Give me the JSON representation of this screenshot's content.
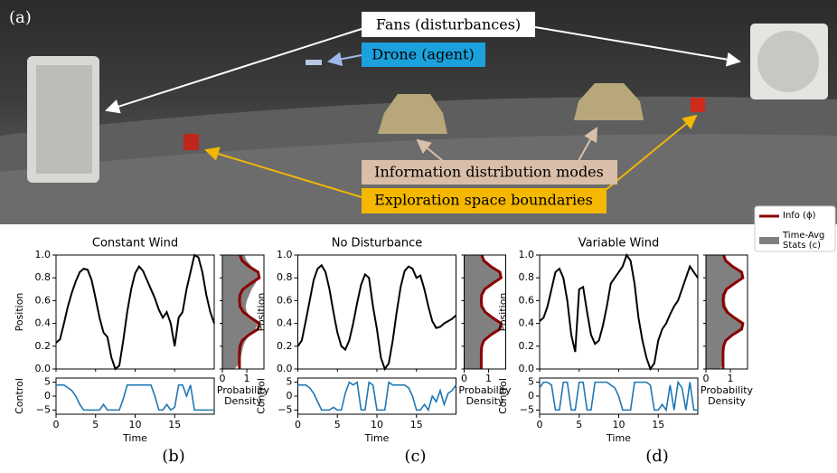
{
  "photo": {
    "panel_label": "(a)",
    "labels": [
      "Fans (disturbances)",
      "Drone (agent)",
      "Information distribution modes",
      "Exploration space boundaries"
    ]
  },
  "chart_data": [
    {
      "type": "line",
      "title": "Constant Wind",
      "caption": "(b)",
      "x": [
        0,
        0.5,
        1,
        1.5,
        2,
        2.5,
        3,
        3.5,
        4,
        4.5,
        5,
        5.5,
        6,
        6.5,
        7,
        7.5,
        8,
        8.5,
        9,
        9.5,
        10,
        10.5,
        11,
        11.5,
        12,
        12.5,
        13,
        13.5,
        14,
        14.5,
        15,
        15.5,
        16,
        16.5,
        17,
        17.5,
        18,
        18.5,
        19,
        19.5,
        20
      ],
      "xlim": [
        0,
        20
      ],
      "xticks": [
        0,
        5,
        10,
        15
      ],
      "xlabel": "Time",
      "ylabel": "Position",
      "ylim": [
        0,
        1
      ],
      "yticks": [
        {
          "value": 0,
          "label": "0.0"
        },
        0.2,
        0.4,
        0.6,
        0.8,
        {
          "value": 1,
          "label": "1.0"
        }
      ],
      "series": [
        {
          "color": "#000000",
          "values": [
            0.23,
            0.26,
            0.4,
            0.55,
            0.67,
            0.77,
            0.85,
            0.88,
            0.87,
            0.78,
            0.62,
            0.45,
            0.32,
            0.28,
            0.1,
            0.0,
            0.03,
            0.25,
            0.5,
            0.7,
            0.84,
            0.9,
            0.86,
            0.78,
            0.7,
            0.62,
            0.52,
            0.45,
            0.5,
            0.4,
            0.2,
            0.45,
            0.5,
            0.7,
            0.85,
            1.0,
            0.98,
            0.85,
            0.65,
            0.5,
            0.4
          ]
        }
      ],
      "control": {
        "ylabel": "Control",
        "ylim": [
          -6.5,
          6.5
        ],
        "yticks": [
          {
            "value": -5,
            "label": "−5"
          },
          0,
          5
        ],
        "color": "#1f77b4",
        "values": [
          4,
          4,
          4,
          3,
          2,
          0,
          -3,
          -5,
          -5,
          -5,
          -5,
          -5,
          -3,
          -5,
          -5,
          -5,
          -5,
          -1,
          4,
          4,
          4,
          4,
          4,
          4,
          4,
          0,
          -5,
          -5,
          -3,
          -5,
          -4,
          4,
          4,
          0,
          4,
          -5,
          -5,
          -5,
          -5,
          -5,
          -5
        ]
      },
      "density": {
        "xlabel": "Probability Density",
        "xlim": [
          0,
          1.7
        ],
        "xticks": [
          0,
          1
        ],
        "info_color": "#8b0000",
        "stats_color": "#808080",
        "y": [
          0,
          0.05,
          0.1,
          0.15,
          0.2,
          0.25,
          0.3,
          0.35,
          0.4,
          0.45,
          0.5,
          0.55,
          0.6,
          0.65,
          0.7,
          0.75,
          0.8,
          0.85,
          0.9,
          0.95,
          1
        ],
        "info": [
          0.7,
          0.7,
          0.7,
          0.7,
          0.72,
          0.81,
          1.09,
          1.46,
          1.51,
          1.16,
          0.86,
          0.72,
          0.7,
          0.72,
          0.84,
          1.16,
          1.51,
          1.46,
          1.09,
          0.81,
          0.72
        ],
        "stats": [
          0.5,
          0.7,
          0.75,
          0.8,
          0.85,
          0.95,
          1.1,
          1.35,
          1.45,
          1.2,
          1.0,
          0.95,
          1.0,
          1.1,
          1.2,
          1.35,
          1.45,
          1.4,
          1.2,
          1.0,
          0.9
        ]
      }
    },
    {
      "type": "line",
      "title": "No Disturbance",
      "caption": "(c)",
      "x": [
        0,
        0.5,
        1,
        1.5,
        2,
        2.5,
        3,
        3.5,
        4,
        4.5,
        5,
        5.5,
        6,
        6.5,
        7,
        7.5,
        8,
        8.5,
        9,
        9.5,
        10,
        10.5,
        11,
        11.5,
        12,
        12.5,
        13,
        13.5,
        14,
        14.5,
        15,
        15.5,
        16,
        16.5,
        17,
        17.5,
        18,
        18.5,
        19,
        19.5,
        20
      ],
      "xlim": [
        0,
        20
      ],
      "xticks": [
        0,
        5,
        10,
        15
      ],
      "xlabel": "Time",
      "ylabel": "Position",
      "ylim": [
        0,
        1
      ],
      "yticks": [
        {
          "value": 0,
          "label": "0.0"
        },
        0.2,
        0.4,
        0.6,
        0.8,
        {
          "value": 1,
          "label": "1.0"
        }
      ],
      "series": [
        {
          "color": "#000000",
          "values": [
            0.2,
            0.25,
            0.42,
            0.6,
            0.78,
            0.88,
            0.91,
            0.85,
            0.7,
            0.5,
            0.32,
            0.2,
            0.17,
            0.25,
            0.4,
            0.58,
            0.74,
            0.83,
            0.8,
            0.55,
            0.35,
            0.1,
            0.0,
            0.05,
            0.25,
            0.5,
            0.72,
            0.86,
            0.9,
            0.88,
            0.8,
            0.82,
            0.7,
            0.55,
            0.42,
            0.36,
            0.37,
            0.4,
            0.42,
            0.44,
            0.47
          ]
        }
      ],
      "control": {
        "ylabel": "Control",
        "ylim": [
          -6.5,
          6.5
        ],
        "yticks": [
          {
            "value": -5,
            "label": "−5"
          },
          0,
          5
        ],
        "color": "#1f77b4",
        "values": [
          4,
          4,
          4,
          3,
          1,
          -2,
          -5,
          -5,
          -5,
          -4,
          -5,
          -5,
          1,
          5,
          4,
          5,
          -5,
          -5,
          5,
          4,
          -5,
          -5,
          -5,
          5,
          4,
          4,
          4,
          4,
          3,
          0,
          -5,
          -5,
          -3,
          -5,
          0,
          -2,
          2,
          -3,
          1,
          2,
          4
        ]
      },
      "density": {
        "xlabel": "Probability Density",
        "xlim": [
          0,
          1.7
        ],
        "xticks": [
          0,
          1
        ],
        "info_color": "#8b0000",
        "stats_color": "#808080",
        "y": [
          0,
          0.05,
          0.1,
          0.15,
          0.2,
          0.25,
          0.3,
          0.35,
          0.4,
          0.45,
          0.5,
          0.55,
          0.6,
          0.65,
          0.7,
          0.75,
          0.8,
          0.85,
          0.9,
          0.95,
          1
        ],
        "info": [
          0.7,
          0.7,
          0.7,
          0.7,
          0.72,
          0.81,
          1.09,
          1.46,
          1.51,
          1.16,
          0.86,
          0.72,
          0.7,
          0.72,
          0.84,
          1.16,
          1.51,
          1.46,
          1.09,
          0.81,
          0.72
        ],
        "stats": [
          0.65,
          0.7,
          0.72,
          0.72,
          0.74,
          0.82,
          1.08,
          1.44,
          1.49,
          1.16,
          0.87,
          0.74,
          0.72,
          0.74,
          0.85,
          1.15,
          1.48,
          1.45,
          1.1,
          0.83,
          0.74
        ]
      }
    },
    {
      "type": "line",
      "title": "Variable Wind",
      "caption": "(d)",
      "x": [
        0,
        0.5,
        1,
        1.5,
        2,
        2.5,
        3,
        3.5,
        4,
        4.5,
        5,
        5.5,
        6,
        6.5,
        7,
        7.5,
        8,
        8.5,
        9,
        9.5,
        10,
        10.5,
        11,
        11.5,
        12,
        12.5,
        13,
        13.5,
        14,
        14.5,
        15,
        15.5,
        16,
        16.5,
        17,
        17.5,
        18,
        18.5,
        19,
        19.5,
        20
      ],
      "xlim": [
        0,
        20
      ],
      "xticks": [
        0,
        5,
        10,
        15
      ],
      "xlabel": "Time",
      "ylabel": "Position",
      "ylim": [
        0,
        1
      ],
      "yticks": [
        {
          "value": 0,
          "label": "0.0"
        },
        0.2,
        0.4,
        0.6,
        0.8,
        {
          "value": 1,
          "label": "1.0"
        }
      ],
      "series": [
        {
          "color": "#000000",
          "values": [
            0.42,
            0.45,
            0.55,
            0.7,
            0.85,
            0.88,
            0.8,
            0.6,
            0.3,
            0.15,
            0.7,
            0.72,
            0.5,
            0.3,
            0.22,
            0.25,
            0.38,
            0.55,
            0.75,
            0.8,
            0.85,
            0.9,
            1.0,
            0.95,
            0.75,
            0.45,
            0.25,
            0.1,
            0.0,
            0.05,
            0.25,
            0.35,
            0.4,
            0.48,
            0.55,
            0.6,
            0.7,
            0.8,
            0.9,
            0.85,
            0.8
          ]
        }
      ],
      "control": {
        "ylabel": "Control",
        "ylim": [
          -6.5,
          6.5
        ],
        "yticks": [
          {
            "value": -5,
            "label": "−5"
          },
          0,
          5
        ],
        "color": "#1f77b4",
        "values": [
          3,
          5,
          5,
          4,
          -5,
          -5,
          5,
          5,
          -5,
          -5,
          5,
          5,
          -5,
          -5,
          5,
          5,
          5,
          5,
          4,
          3,
          0,
          -5,
          -5,
          -5,
          5,
          5,
          5,
          5,
          4,
          -5,
          -5,
          -3,
          -5,
          4,
          -5,
          5,
          3,
          -5,
          5,
          -5,
          -5
        ]
      },
      "density": {
        "xlabel": "Probability Density",
        "xlim": [
          0,
          1.7
        ],
        "xticks": [
          0,
          1
        ],
        "info_color": "#8b0000",
        "stats_color": "#808080",
        "y": [
          0,
          0.05,
          0.1,
          0.15,
          0.2,
          0.25,
          0.3,
          0.35,
          0.4,
          0.45,
          0.5,
          0.55,
          0.6,
          0.65,
          0.7,
          0.75,
          0.8,
          0.85,
          0.9,
          0.95,
          1
        ],
        "info": [
          0.7,
          0.7,
          0.7,
          0.7,
          0.72,
          0.81,
          1.09,
          1.46,
          1.51,
          1.16,
          0.86,
          0.72,
          0.7,
          0.72,
          0.84,
          1.16,
          1.51,
          1.46,
          1.09,
          0.81,
          0.72
        ],
        "stats": [
          0.6,
          0.68,
          0.7,
          0.72,
          0.76,
          0.85,
          1.1,
          1.42,
          1.45,
          1.2,
          0.95,
          0.82,
          0.78,
          0.8,
          0.9,
          1.18,
          1.48,
          1.44,
          1.1,
          0.85,
          0.75
        ]
      },
      "legend": [
        {
          "name": "Info (ϕ)",
          "color": "#8b0000"
        },
        {
          "name": "Time-Avg Stats (c)",
          "color": "#808080"
        }
      ]
    }
  ]
}
